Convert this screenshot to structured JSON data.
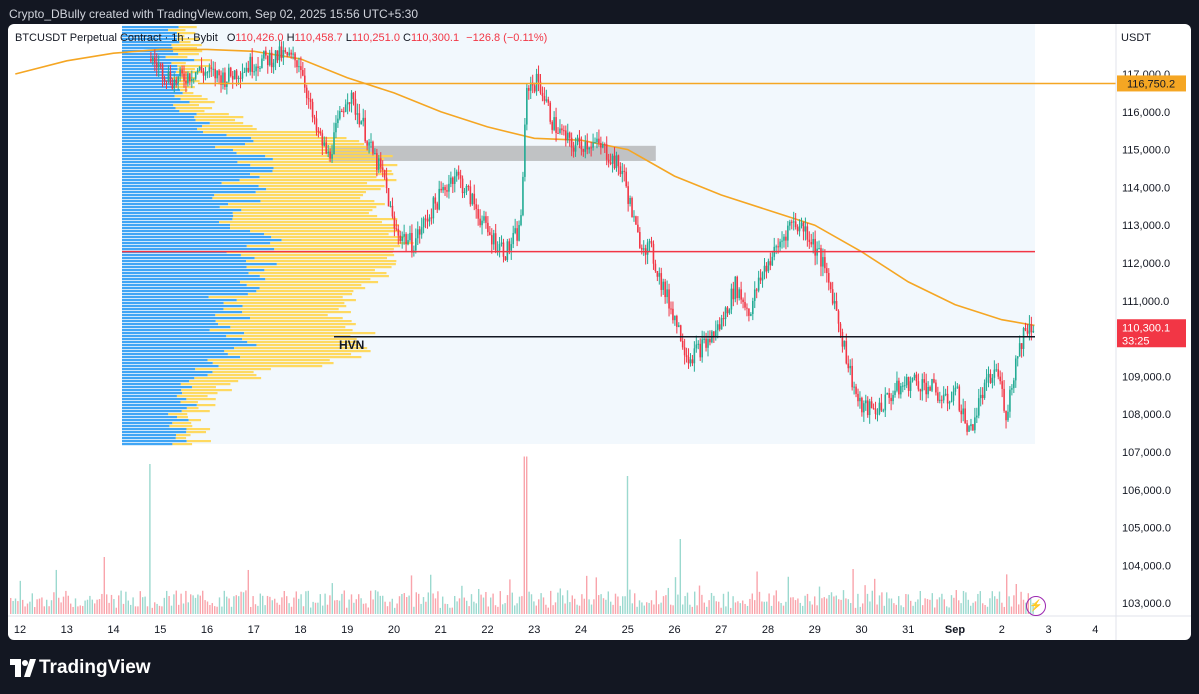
{
  "header": {
    "attribution": "Crypto_DBully created with TradingView.com, Sep 02, 2025 15:56 UTC+5:30"
  },
  "legend": {
    "symbol": "BTCUSDT Perpetual Contract · 1h · Bybit",
    "o_label": "O",
    "o_value": "110,426.0",
    "h_label": "H",
    "h_value": "110,458.7",
    "l_label": "L",
    "l_value": "110,251.0",
    "c_label": "C",
    "c_value": "110,300.1",
    "change": "−126.8 (−0.11%)"
  },
  "currency": "USDT",
  "annotation_hvn": "HVN",
  "brand": "TradingView",
  "colors": {
    "up": "#22ab94",
    "down": "#f23645",
    "ma": "#f5a623",
    "profile_blue": "#2196f3",
    "profile_yellow": "#ffd54f",
    "level_orange": "#f5a623",
    "level_red": "#f23645",
    "level_black": "#131722",
    "zone_gray": "#9e9e9e"
  },
  "chart_data": {
    "type": "candlestick",
    "symbol": "BTCUSDT",
    "timeframe": "1h",
    "x_ticks": [
      "12",
      "13",
      "14",
      "15",
      "16",
      "17",
      "18",
      "19",
      "20",
      "21",
      "22",
      "23",
      "24",
      "25",
      "26",
      "27",
      "28",
      "29",
      "30",
      "31",
      "Sep",
      "2",
      "3",
      "4"
    ],
    "y_ticks": [
      "117,000.0",
      "116,000.0",
      "115,000.0",
      "114,000.0",
      "113,000.0",
      "112,000.0",
      "111,000.0",
      "110,000.0",
      "109,000.0",
      "108,000.0",
      "107,000.0",
      "106,000.0",
      "105,000.0",
      "104,000.0",
      "103,000.0"
    ],
    "y_range": [
      102600,
      117650
    ],
    "price_path": [
      {
        "t": 14.8,
        "p": 117400
      },
      {
        "t": 15.3,
        "p": 116800
      },
      {
        "t": 15.8,
        "p": 117100
      },
      {
        "t": 16.4,
        "p": 116900
      },
      {
        "t": 17.0,
        "p": 117300
      },
      {
        "t": 17.6,
        "p": 117500
      },
      {
        "t": 18.0,
        "p": 117300
      },
      {
        "t": 18.3,
        "p": 115600
      },
      {
        "t": 18.6,
        "p": 114800
      },
      {
        "t": 19.0,
        "p": 116500
      },
      {
        "t": 19.3,
        "p": 115800
      },
      {
        "t": 19.5,
        "p": 115000
      },
      {
        "t": 19.8,
        "p": 114200
      },
      {
        "t": 20.0,
        "p": 112900
      },
      {
        "t": 20.4,
        "p": 112500
      },
      {
        "t": 20.8,
        "p": 113400
      },
      {
        "t": 21.3,
        "p": 114400
      },
      {
        "t": 21.7,
        "p": 113600
      },
      {
        "t": 22.0,
        "p": 112800
      },
      {
        "t": 22.4,
        "p": 112300
      },
      {
        "t": 22.7,
        "p": 112900
      },
      {
        "t": 22.85,
        "p": 116700
      },
      {
        "t": 23.1,
        "p": 116800
      },
      {
        "t": 23.4,
        "p": 115700
      },
      {
        "t": 23.8,
        "p": 115100
      },
      {
        "t": 24.2,
        "p": 115200
      },
      {
        "t": 24.5,
        "p": 115000
      },
      {
        "t": 24.9,
        "p": 114400
      },
      {
        "t": 25.2,
        "p": 112700
      },
      {
        "t": 25.5,
        "p": 112300
      },
      {
        "t": 25.8,
        "p": 111200
      },
      {
        "t": 26.0,
        "p": 110600
      },
      {
        "t": 26.3,
        "p": 109500
      },
      {
        "t": 26.7,
        "p": 109900
      },
      {
        "t": 27.0,
        "p": 110400
      },
      {
        "t": 27.3,
        "p": 111400
      },
      {
        "t": 27.6,
        "p": 110700
      },
      {
        "t": 27.9,
        "p": 111800
      },
      {
        "t": 28.2,
        "p": 112400
      },
      {
        "t": 28.5,
        "p": 113100
      },
      {
        "t": 28.8,
        "p": 112900
      },
      {
        "t": 29.1,
        "p": 112200
      },
      {
        "t": 29.4,
        "p": 111100
      },
      {
        "t": 29.7,
        "p": 109400
      },
      {
        "t": 29.95,
        "p": 108200
      },
      {
        "t": 30.3,
        "p": 108100
      },
      {
        "t": 30.7,
        "p": 108600
      },
      {
        "t": 31.1,
        "p": 108900
      },
      {
        "t": 31.5,
        "p": 108700
      },
      {
        "t": 31.8,
        "p": 108300
      },
      {
        "t": 32.0,
        "p": 108700
      },
      {
        "t": 32.3,
        "p": 107500
      },
      {
        "t": 32.6,
        "p": 108600
      },
      {
        "t": 32.9,
        "p": 109200
      },
      {
        "t": 33.1,
        "p": 108000
      },
      {
        "t": 33.3,
        "p": 109400
      },
      {
        "t": 33.5,
        "p": 110300
      },
      {
        "t": 33.7,
        "p": 110350
      }
    ],
    "ma_path": [
      {
        "t": 11.9,
        "p": 117000
      },
      {
        "t": 13.0,
        "p": 117350
      },
      {
        "t": 14.0,
        "p": 117550
      },
      {
        "t": 15.0,
        "p": 117650
      },
      {
        "t": 16.0,
        "p": 117650
      },
      {
        "t": 17.0,
        "p": 117600
      },
      {
        "t": 18.0,
        "p": 117400
      },
      {
        "t": 19.0,
        "p": 116900
      },
      {
        "t": 20.0,
        "p": 116500
      },
      {
        "t": 21.0,
        "p": 116000
      },
      {
        "t": 22.0,
        "p": 115600
      },
      {
        "t": 23.0,
        "p": 115300
      },
      {
        "t": 24.0,
        "p": 115250
      },
      {
        "t": 25.0,
        "p": 115000
      },
      {
        "t": 26.0,
        "p": 114300
      },
      {
        "t": 27.0,
        "p": 113800
      },
      {
        "t": 28.0,
        "p": 113400
      },
      {
        "t": 29.0,
        "p": 113000
      },
      {
        "t": 30.0,
        "p": 112300
      },
      {
        "t": 31.0,
        "p": 111500
      },
      {
        "t": 32.0,
        "p": 110900
      },
      {
        "t": 33.0,
        "p": 110500
      },
      {
        "t": 33.7,
        "p": 110350
      }
    ],
    "levels": [
      {
        "name": "resistance",
        "price": 116750.2,
        "label": "116,750.2",
        "color": "#f5a623"
      },
      {
        "name": "red-level",
        "price": 112300,
        "color": "#f23645"
      },
      {
        "name": "hvn-level",
        "price": 110050,
        "color": "#131722"
      }
    ],
    "zone": {
      "low": 114700,
      "high": 115100,
      "t_start": 18.6,
      "t_end": 25.6
    },
    "last_price": {
      "label": "110,300.1",
      "countdown": "33:25",
      "price": 110300.1
    },
    "volume_spikes": [
      {
        "t": 14.75,
        "v": 1.0
      },
      {
        "t": 22.8,
        "v": 1.05
      },
      {
        "t": 25.0,
        "v": 0.92
      },
      {
        "t": 13.8,
        "v": 0.38
      },
      {
        "t": 26.1,
        "v": 0.5
      },
      {
        "t": 29.8,
        "v": 0.3
      },
      {
        "t": 33.3,
        "v": 0.2
      }
    ]
  }
}
